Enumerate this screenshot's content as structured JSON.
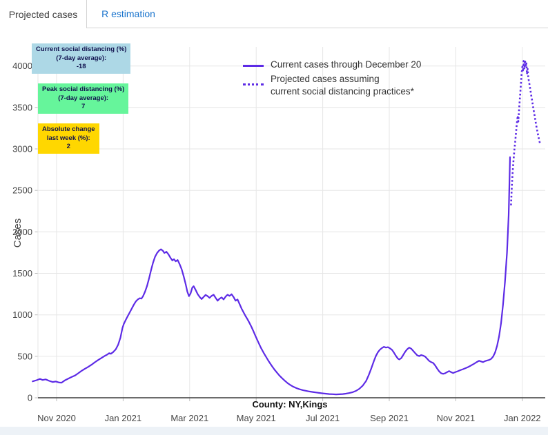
{
  "tabs": {
    "active": "Projected cases",
    "inactive": "R estimation"
  },
  "colors": {
    "line": "#5D2BE6",
    "grid": "#e6e6e6",
    "axis": "#3c3c3c",
    "tick_text": "#444444",
    "tab_link": "#1873cc",
    "annotation_text": "#10104d",
    "bottom_strip": "#edf2f7"
  },
  "annotations": {
    "current": {
      "line1": "Current social distancing (%)",
      "line2": "(7-day average):",
      "value": "-18",
      "bg": "#ADD8E6"
    },
    "peak": {
      "line1": "Peak social distancing (%)",
      "line2": "(7-day average):",
      "value": "7",
      "bg": "#66F59B"
    },
    "absolute": {
      "line1": "Absolute change",
      "line2": "last week (%):",
      "value": "2",
      "bg": "#FFD700"
    }
  },
  "legend": {
    "current_label": "Current cases through December 20",
    "projected_label_line1": "Projected cases assuming",
    "projected_label_line2": "current social distancing practices*"
  },
  "chart_data": {
    "type": "line",
    "title": "",
    "xlabel": "County: NY,Kings",
    "ylabel": "Cases",
    "x_unit": "months since 2020-11-01 (0 = Nov 2020, 2 = Jan 2021, 14 = Jan 2022)",
    "xlim": [
      -0.85,
      14.75
    ],
    "ylim": [
      0,
      4300
    ],
    "grid": true,
    "legend_position": "top-center",
    "y_ticks": [
      0,
      500,
      1000,
      1500,
      2000,
      2500,
      3000,
      3500,
      4000
    ],
    "x_ticks": [
      {
        "t": 0,
        "label": "Nov 2020"
      },
      {
        "t": 2,
        "label": "Jan 2021"
      },
      {
        "t": 4,
        "label": "Mar 2021"
      },
      {
        "t": 6,
        "label": "May 2021"
      },
      {
        "t": 8,
        "label": "Jul 2021"
      },
      {
        "t": 10,
        "label": "Sep 2021"
      },
      {
        "t": 12,
        "label": "Nov 2021"
      },
      {
        "t": 14,
        "label": "Jan 2022"
      }
    ],
    "series": [
      {
        "name": "Current cases through December 20",
        "style": "solid",
        "color": "#5D2BE6",
        "points": [
          [
            -0.72,
            198
          ],
          [
            -0.6,
            212
          ],
          [
            -0.5,
            228
          ],
          [
            -0.42,
            214
          ],
          [
            -0.33,
            222
          ],
          [
            -0.22,
            204
          ],
          [
            -0.12,
            190
          ],
          [
            -0.02,
            196
          ],
          [
            0.08,
            184
          ],
          [
            0.15,
            182
          ],
          [
            0.25,
            210
          ],
          [
            0.35,
            230
          ],
          [
            0.45,
            250
          ],
          [
            0.55,
            268
          ],
          [
            0.65,
            295
          ],
          [
            0.75,
            325
          ],
          [
            0.85,
            350
          ],
          [
            0.95,
            372
          ],
          [
            1.05,
            398
          ],
          [
            1.15,
            428
          ],
          [
            1.25,
            455
          ],
          [
            1.35,
            480
          ],
          [
            1.45,
            505
          ],
          [
            1.52,
            520
          ],
          [
            1.58,
            538
          ],
          [
            1.63,
            530
          ],
          [
            1.7,
            550
          ],
          [
            1.78,
            585
          ],
          [
            1.85,
            640
          ],
          [
            1.92,
            725
          ],
          [
            1.98,
            840
          ],
          [
            2.02,
            890
          ],
          [
            2.08,
            940
          ],
          [
            2.14,
            985
          ],
          [
            2.2,
            1030
          ],
          [
            2.26,
            1075
          ],
          [
            2.32,
            1120
          ],
          [
            2.38,
            1160
          ],
          [
            2.44,
            1185
          ],
          [
            2.5,
            1200
          ],
          [
            2.55,
            1195
          ],
          [
            2.6,
            1225
          ],
          [
            2.66,
            1280
          ],
          [
            2.72,
            1350
          ],
          [
            2.78,
            1440
          ],
          [
            2.84,
            1540
          ],
          [
            2.9,
            1630
          ],
          [
            2.96,
            1700
          ],
          [
            3.02,
            1745
          ],
          [
            3.08,
            1775
          ],
          [
            3.14,
            1790
          ],
          [
            3.2,
            1770
          ],
          [
            3.24,
            1745
          ],
          [
            3.3,
            1760
          ],
          [
            3.36,
            1730
          ],
          [
            3.42,
            1690
          ],
          [
            3.48,
            1655
          ],
          [
            3.53,
            1670
          ],
          [
            3.58,
            1645
          ],
          [
            3.64,
            1660
          ],
          [
            3.7,
            1610
          ],
          [
            3.76,
            1550
          ],
          [
            3.82,
            1465
          ],
          [
            3.88,
            1370
          ],
          [
            3.93,
            1280
          ],
          [
            3.98,
            1225
          ],
          [
            4.03,
            1260
          ],
          [
            4.08,
            1330
          ],
          [
            4.12,
            1345
          ],
          [
            4.18,
            1300
          ],
          [
            4.24,
            1250
          ],
          [
            4.3,
            1215
          ],
          [
            4.36,
            1190
          ],
          [
            4.42,
            1215
          ],
          [
            4.48,
            1240
          ],
          [
            4.54,
            1225
          ],
          [
            4.6,
            1205
          ],
          [
            4.66,
            1228
          ],
          [
            4.72,
            1242
          ],
          [
            4.78,
            1205
          ],
          [
            4.84,
            1170
          ],
          [
            4.9,
            1195
          ],
          [
            4.96,
            1210
          ],
          [
            5.02,
            1185
          ],
          [
            5.08,
            1220
          ],
          [
            5.14,
            1242
          ],
          [
            5.2,
            1228
          ],
          [
            5.26,
            1248
          ],
          [
            5.32,
            1215
          ],
          [
            5.38,
            1170
          ],
          [
            5.44,
            1185
          ],
          [
            5.5,
            1130
          ],
          [
            5.56,
            1075
          ],
          [
            5.62,
            1030
          ],
          [
            5.68,
            985
          ],
          [
            5.74,
            945
          ],
          [
            5.8,
            900
          ],
          [
            5.86,
            852
          ],
          [
            5.92,
            800
          ],
          [
            5.98,
            745
          ],
          [
            6.06,
            672
          ],
          [
            6.14,
            605
          ],
          [
            6.22,
            545
          ],
          [
            6.3,
            490
          ],
          [
            6.38,
            438
          ],
          [
            6.46,
            390
          ],
          [
            6.54,
            345
          ],
          [
            6.62,
            305
          ],
          [
            6.7,
            268
          ],
          [
            6.78,
            235
          ],
          [
            6.86,
            205
          ],
          [
            6.94,
            178
          ],
          [
            7.02,
            155
          ],
          [
            7.1,
            136
          ],
          [
            7.2,
            118
          ],
          [
            7.3,
            103
          ],
          [
            7.4,
            92
          ],
          [
            7.5,
            84
          ],
          [
            7.6,
            76
          ],
          [
            7.7,
            70
          ],
          [
            7.8,
            64
          ],
          [
            7.9,
            58
          ],
          [
            8.0,
            53
          ],
          [
            8.1,
            49
          ],
          [
            8.2,
            45
          ],
          [
            8.3,
            43
          ],
          [
            8.4,
            41
          ],
          [
            8.5,
            42
          ],
          [
            8.6,
            45
          ],
          [
            8.7,
            50
          ],
          [
            8.8,
            57
          ],
          [
            8.9,
            67
          ],
          [
            9.0,
            83
          ],
          [
            9.1,
            108
          ],
          [
            9.2,
            145
          ],
          [
            9.3,
            200
          ],
          [
            9.38,
            270
          ],
          [
            9.46,
            355
          ],
          [
            9.54,
            445
          ],
          [
            9.6,
            505
          ],
          [
            9.66,
            550
          ],
          [
            9.72,
            580
          ],
          [
            9.78,
            600
          ],
          [
            9.84,
            614
          ],
          [
            9.9,
            605
          ],
          [
            9.96,
            610
          ],
          [
            10.02,
            596
          ],
          [
            10.08,
            578
          ],
          [
            10.14,
            545
          ],
          [
            10.2,
            505
          ],
          [
            10.26,
            472
          ],
          [
            10.3,
            462
          ],
          [
            10.36,
            478
          ],
          [
            10.42,
            515
          ],
          [
            10.48,
            555
          ],
          [
            10.54,
            585
          ],
          [
            10.6,
            605
          ],
          [
            10.66,
            592
          ],
          [
            10.72,
            565
          ],
          [
            10.78,
            538
          ],
          [
            10.84,
            512
          ],
          [
            10.9,
            502
          ],
          [
            10.96,
            515
          ],
          [
            11.02,
            508
          ],
          [
            11.08,
            495
          ],
          [
            11.14,
            470
          ],
          [
            11.2,
            445
          ],
          [
            11.26,
            430
          ],
          [
            11.32,
            420
          ],
          [
            11.38,
            390
          ],
          [
            11.44,
            352
          ],
          [
            11.5,
            318
          ],
          [
            11.56,
            296
          ],
          [
            11.62,
            288
          ],
          [
            11.68,
            296
          ],
          [
            11.74,
            310
          ],
          [
            11.8,
            322
          ],
          [
            11.86,
            308
          ],
          [
            11.92,
            298
          ],
          [
            11.98,
            308
          ],
          [
            12.06,
            320
          ],
          [
            12.14,
            333
          ],
          [
            12.22,
            345
          ],
          [
            12.3,
            358
          ],
          [
            12.38,
            372
          ],
          [
            12.46,
            390
          ],
          [
            12.54,
            408
          ],
          [
            12.62,
            428
          ],
          [
            12.7,
            446
          ],
          [
            12.76,
            438
          ],
          [
            12.82,
            430
          ],
          [
            12.88,
            442
          ],
          [
            12.94,
            450
          ],
          [
            13.0,
            455
          ],
          [
            13.06,
            468
          ],
          [
            13.12,
            495
          ],
          [
            13.18,
            545
          ],
          [
            13.24,
            625
          ],
          [
            13.3,
            740
          ],
          [
            13.36,
            900
          ],
          [
            13.42,
            1120
          ],
          [
            13.48,
            1400
          ],
          [
            13.54,
            1750
          ],
          [
            13.59,
            2200
          ],
          [
            13.63,
            2900
          ]
        ]
      },
      {
        "name": "Projected cases assuming current social distancing practices*",
        "style": "dotted",
        "color": "#5D2BE6",
        "points": [
          [
            13.66,
            2320
          ],
          [
            13.685,
            2550
          ],
          [
            13.71,
            2720
          ],
          [
            13.735,
            2860
          ],
          [
            13.76,
            2980
          ],
          [
            13.785,
            3080
          ],
          [
            13.81,
            3190
          ],
          [
            13.835,
            3300
          ],
          [
            13.86,
            3400
          ],
          [
            13.88,
            3330
          ],
          [
            13.9,
            3460
          ],
          [
            13.92,
            3570
          ],
          [
            13.94,
            3680
          ],
          [
            13.96,
            3800
          ],
          [
            13.98,
            3910
          ],
          [
            14.0,
            3990
          ],
          [
            14.02,
            3930
          ],
          [
            14.04,
            4060
          ],
          [
            14.06,
            3960
          ],
          [
            14.08,
            4070
          ],
          [
            14.1,
            3985
          ],
          [
            14.12,
            4045
          ],
          [
            14.14,
            3900
          ],
          [
            14.16,
            3965
          ],
          [
            14.18,
            3855
          ],
          [
            14.21,
            3790
          ],
          [
            14.24,
            3715
          ],
          [
            14.27,
            3640
          ],
          [
            14.3,
            3565
          ],
          [
            14.33,
            3490
          ],
          [
            14.36,
            3420
          ],
          [
            14.39,
            3350
          ],
          [
            14.42,
            3280
          ],
          [
            14.45,
            3215
          ],
          [
            14.48,
            3155
          ],
          [
            14.51,
            3100
          ],
          [
            14.54,
            3050
          ]
        ]
      }
    ]
  }
}
